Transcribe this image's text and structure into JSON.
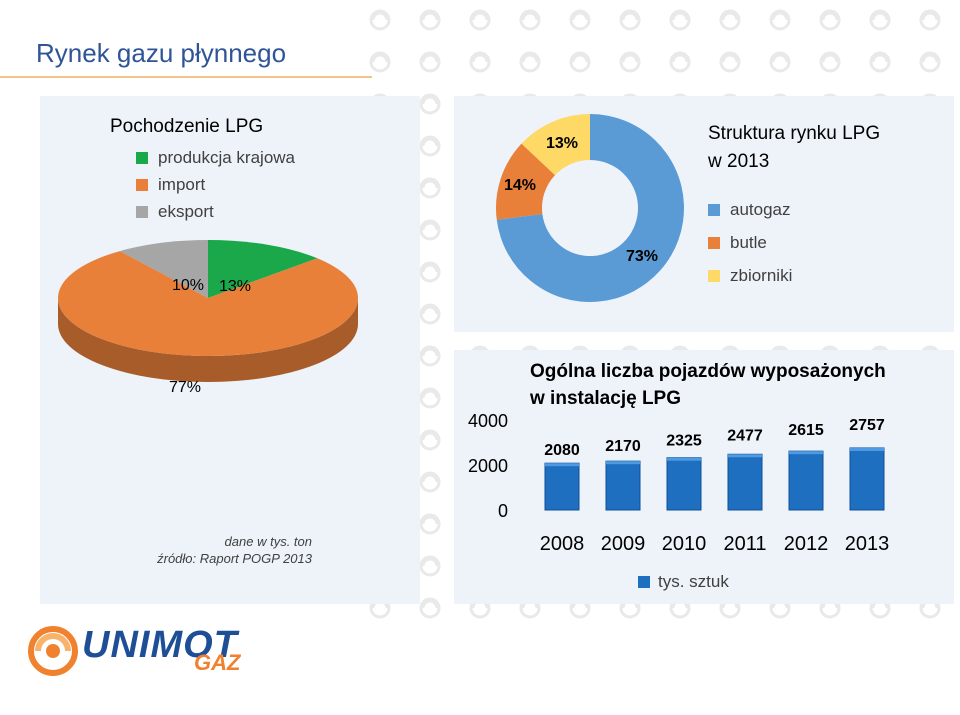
{
  "page": {
    "title": "Rynek gazu płynnego"
  },
  "colors": {
    "green": "#1aa84a",
    "orange": "#e8803a",
    "gray": "#a6a6a6",
    "blue": "#5b9bd5",
    "yellow": "#ffd966",
    "title": "#2f5597",
    "bar": "#1f6fc0"
  },
  "origin": {
    "title": "Pochodzenie LPG",
    "legend": [
      "produkcja krajowa",
      "import",
      "eksport"
    ],
    "note_units": "dane w tys. ton",
    "note_source": "źródło: Raport POGP 2013"
  },
  "structure": {
    "title_line1": "Struktura rynku LPG",
    "title_line2": "w 2013",
    "legend": [
      "autogaz",
      "butle",
      "zbiorniki"
    ]
  },
  "vehicles": {
    "title_line1": "Ogólna liczba pojazdów wyposażonych",
    "title_line2": "w instalację LPG",
    "legend": "tys. sztuk"
  },
  "logo": {
    "brand": "UNIMOT",
    "sub": "GAZ"
  },
  "chart_data": [
    {
      "type": "pie",
      "title": "Pochodzenie LPG",
      "categories": [
        "produkcja krajowa",
        "import",
        "eksport"
      ],
      "values": [
        13,
        77,
        10
      ],
      "labels": [
        "13%",
        "77%",
        "10%"
      ],
      "colors": [
        "#1aa84a",
        "#e8803a",
        "#a6a6a6"
      ]
    },
    {
      "type": "pie",
      "title": "Struktura rynku LPG w 2013",
      "categories": [
        "autogaz",
        "butle",
        "zbiorniki"
      ],
      "values": [
        73,
        14,
        13
      ],
      "labels": [
        "73%",
        "14%",
        "13%"
      ],
      "colors": [
        "#5b9bd5",
        "#e8803a",
        "#ffd966"
      ]
    },
    {
      "type": "bar",
      "title": "Ogólna liczba pojazdów wyposażonych w instalację LPG",
      "categories": [
        "2008",
        "2009",
        "2010",
        "2011",
        "2012",
        "2013"
      ],
      "series": [
        {
          "name": "tys. sztuk",
          "values": [
            2080,
            2170,
            2325,
            2477,
            2615,
            2757
          ]
        }
      ],
      "yticks": [
        "0",
        "2000",
        "4000"
      ],
      "ylim": [
        0,
        4000
      ]
    }
  ]
}
